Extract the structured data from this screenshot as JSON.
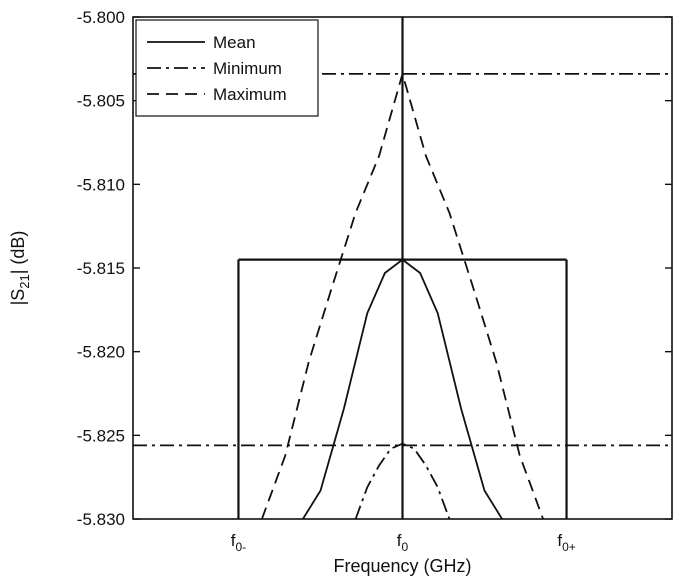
{
  "chart_data": {
    "type": "line",
    "xlabel": "Frequency (GHz)",
    "ylabel": "|S",
    "ylabel_sub": "21",
    "ylabel_tail": "| (dB)",
    "ylim": [
      -5.83,
      -5.8
    ],
    "yticks": [
      "-5.800",
      "-5.805",
      "-5.810",
      "-5.815",
      "-5.820",
      "-5.825",
      "-5.830"
    ],
    "yticks_values": [
      -5.8,
      -5.805,
      -5.81,
      -5.815,
      -5.82,
      -5.825,
      -5.83
    ],
    "xlim": [
      -2.3,
      2.3
    ],
    "xticks": [
      {
        "base": "f",
        "sub": "0-",
        "value": -1.4
      },
      {
        "base": "f",
        "sub": "0",
        "value": 0
      },
      {
        "base": "f",
        "sub": "0+",
        "value": 1.4
      }
    ],
    "legend_position": "top-left",
    "series": [
      {
        "name": "Mean",
        "style": "solid",
        "points": [
          [
            -0.85,
            -5.83
          ],
          [
            -0.7,
            -5.8283
          ],
          [
            -0.5,
            -5.8234
          ],
          [
            -0.3,
            -5.8177
          ],
          [
            -0.15,
            -5.8153
          ],
          [
            0,
            -5.8145
          ],
          [
            0.15,
            -5.8153
          ],
          [
            0.3,
            -5.8177
          ],
          [
            0.5,
            -5.8234
          ],
          [
            0.7,
            -5.8283
          ],
          [
            0.85,
            -5.83
          ]
        ]
      },
      {
        "name": "Minimum",
        "style": "dashdot",
        "points": [
          [
            -0.4,
            -5.83
          ],
          [
            -0.3,
            -5.8281
          ],
          [
            -0.2,
            -5.8268
          ],
          [
            -0.1,
            -5.8258
          ],
          [
            0,
            -5.8255
          ],
          [
            0.1,
            -5.8258
          ],
          [
            0.2,
            -5.8268
          ],
          [
            0.3,
            -5.8281
          ],
          [
            0.4,
            -5.83
          ]
        ]
      },
      {
        "name": "Maximum",
        "style": "dashed",
        "points": [
          [
            -1.2,
            -5.83
          ],
          [
            -1.0,
            -5.8262
          ],
          [
            -0.8,
            -5.8206
          ],
          [
            -0.6,
            -5.8161
          ],
          [
            -0.4,
            -5.8117
          ],
          [
            -0.2,
            -5.8083
          ],
          [
            0,
            -5.8034
          ],
          [
            0.2,
            -5.8083
          ],
          [
            0.4,
            -5.8117
          ],
          [
            0.6,
            -5.8161
          ],
          [
            0.8,
            -5.8206
          ],
          [
            1.0,
            -5.8262
          ],
          [
            1.2,
            -5.83
          ]
        ]
      }
    ],
    "reference_lines": {
      "horizontal": [
        {
          "y": -5.8034,
          "style": "dashdot"
        },
        {
          "y": -5.8256,
          "style": "dashdot"
        },
        {
          "y": -5.8145,
          "style": "solid",
          "x_range": [
            -1.4,
            1.4
          ]
        }
      ],
      "vertical": [
        {
          "x": -1.4,
          "y_range": [
            -5.83,
            -5.8145
          ]
        },
        {
          "x": 0,
          "y_range": [
            -5.83,
            -5.8
          ]
        },
        {
          "x": 1.4,
          "y_range": [
            -5.83,
            -5.8145
          ]
        }
      ]
    }
  }
}
